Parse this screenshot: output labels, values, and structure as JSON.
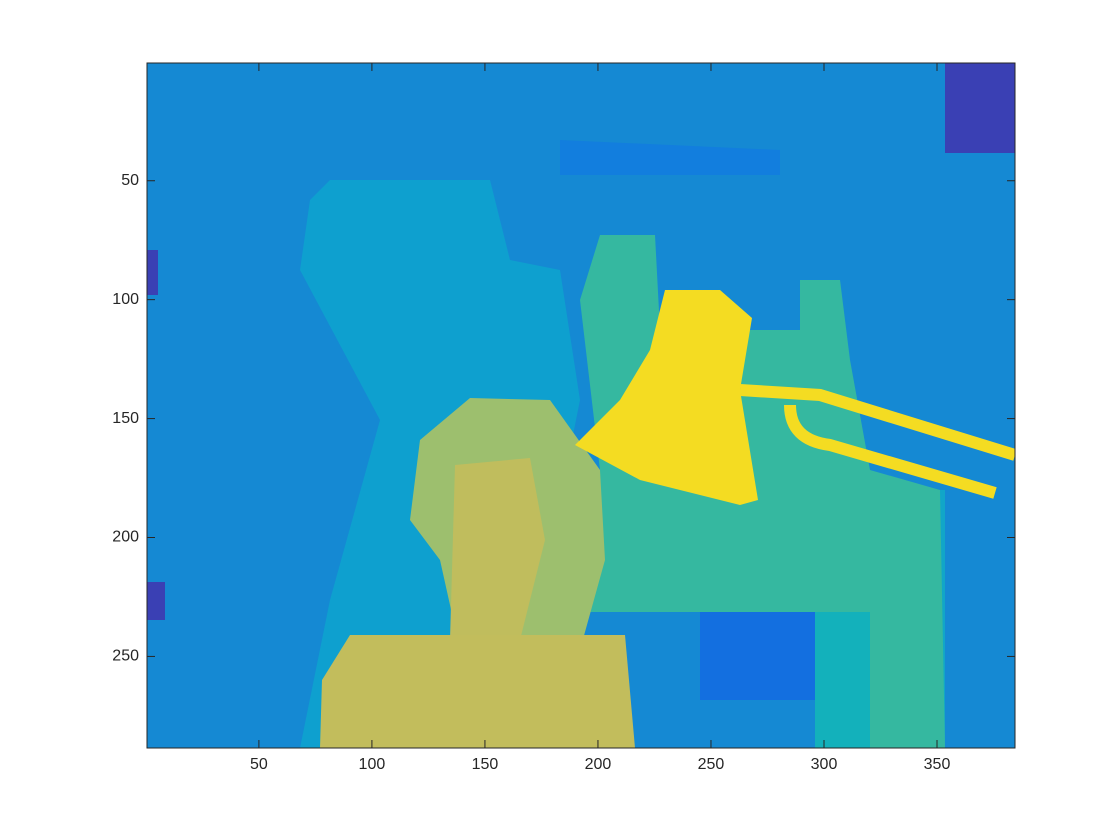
{
  "chart_data": {
    "type": "image",
    "xlim": [
      0.5,
      384.5
    ],
    "ylim": [
      0.5,
      288.5
    ],
    "y_reversed": true,
    "xticks": [
      50,
      100,
      150,
      200,
      250,
      300,
      350
    ],
    "yticks": [
      50,
      100,
      150,
      200,
      250
    ],
    "box": true,
    "grid": false
  }
}
